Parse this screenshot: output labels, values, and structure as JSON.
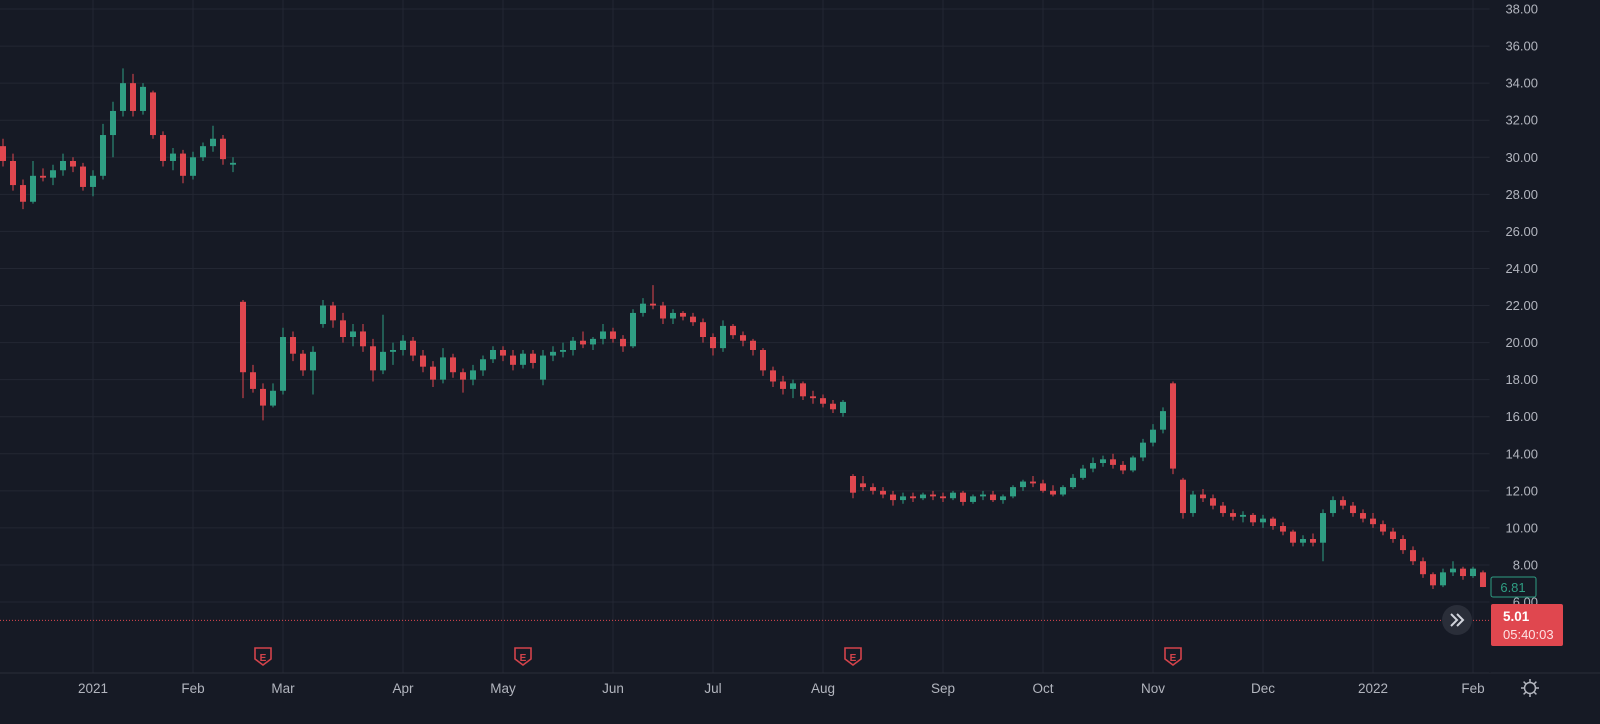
{
  "colors": {
    "background": "#161a25",
    "grid": "#232733",
    "up": "#2f9e83",
    "down": "#e0474f",
    "text": "#b2b5be",
    "earnings": "#d2434b"
  },
  "chart_data": {
    "type": "candlestick",
    "title": "",
    "xlabel": "",
    "ylabel": "",
    "ylim": [
      5,
      38.5
    ],
    "grid": true,
    "y_ticks": [
      "38.00",
      "36.00",
      "34.00",
      "32.00",
      "30.00",
      "28.00",
      "26.00",
      "24.00",
      "22.00",
      "20.00",
      "18.00",
      "16.00",
      "14.00",
      "12.00",
      "10.00",
      "8.00",
      "6.00"
    ],
    "x_ticks": [
      {
        "label": "2021",
        "index": 9
      },
      {
        "label": "Feb",
        "index": 19
      },
      {
        "label": "Mar",
        "index": 28
      },
      {
        "label": "Apr",
        "index": 40
      },
      {
        "label": "May",
        "index": 50
      },
      {
        "label": "Jun",
        "index": 61
      },
      {
        "label": "Jul",
        "index": 71
      },
      {
        "label": "Aug",
        "index": 82
      },
      {
        "label": "Sep",
        "index": 94
      },
      {
        "label": "Oct",
        "index": 104
      },
      {
        "label": "Nov",
        "index": 115
      },
      {
        "label": "Dec",
        "index": 126
      },
      {
        "label": "2022",
        "index": 137
      },
      {
        "label": "Feb",
        "index": 147
      }
    ],
    "earnings_markers": [
      {
        "label": "E",
        "index": 26
      },
      {
        "label": "E",
        "index": 52
      },
      {
        "label": "E",
        "index": 85
      },
      {
        "label": "E",
        "index": 117
      }
    ],
    "last_price": {
      "label": "6.81",
      "value": 6.81
    },
    "price_line": {
      "label": "5.01",
      "value": 5.01,
      "countdown": "05:40:03"
    },
    "ohlc": [
      [
        30.6,
        31,
        29.5,
        29.8
      ],
      [
        29.8,
        30.2,
        28.2,
        28.5
      ],
      [
        28.5,
        28.8,
        27.2,
        27.6
      ],
      [
        27.6,
        29.8,
        27.5,
        29.0
      ],
      [
        29.0,
        29.4,
        28.7,
        28.9
      ],
      [
        28.9,
        29.6,
        28.5,
        29.3
      ],
      [
        29.3,
        30.2,
        29.0,
        29.8
      ],
      [
        29.8,
        30.0,
        29.2,
        29.5
      ],
      [
        29.5,
        29.7,
        28.2,
        28.4
      ],
      [
        28.4,
        29.3,
        27.9,
        29.0
      ],
      [
        29.0,
        31.8,
        28.8,
        31.2
      ],
      [
        31.2,
        33.0,
        30.0,
        32.5
      ],
      [
        32.5,
        34.8,
        32.2,
        34.0
      ],
      [
        34.0,
        34.5,
        32.2,
        32.5
      ],
      [
        32.5,
        34.0,
        32.3,
        33.8
      ],
      [
        33.5,
        33.6,
        31.0,
        31.2
      ],
      [
        31.2,
        31.4,
        29.5,
        29.8
      ],
      [
        29.8,
        30.5,
        29.3,
        30.2
      ],
      [
        30.2,
        30.4,
        28.6,
        29.0
      ],
      [
        29.0,
        30.3,
        28.8,
        30.0
      ],
      [
        30.0,
        30.8,
        29.8,
        30.6
      ],
      [
        30.6,
        31.7,
        30.3,
        31.0
      ],
      [
        31.0,
        31.2,
        29.6,
        29.9
      ],
      [
        29.6,
        30.0,
        29.2,
        29.7
      ],
      [
        22.2,
        22.3,
        17.0,
        18.4
      ],
      [
        18.4,
        18.8,
        17.3,
        17.5
      ],
      [
        17.5,
        17.8,
        15.8,
        16.6
      ],
      [
        16.6,
        17.8,
        16.5,
        17.4
      ],
      [
        17.4,
        20.8,
        17.2,
        20.3
      ],
      [
        20.3,
        20.6,
        19.0,
        19.4
      ],
      [
        19.4,
        19.6,
        18.2,
        18.5
      ],
      [
        18.5,
        19.8,
        17.2,
        19.5
      ],
      [
        21.0,
        22.3,
        20.8,
        22.0
      ],
      [
        22.0,
        22.2,
        20.8,
        21.2
      ],
      [
        21.2,
        21.6,
        20.0,
        20.3
      ],
      [
        20.3,
        21.0,
        19.8,
        20.6
      ],
      [
        20.6,
        21.0,
        19.5,
        19.8
      ],
      [
        19.8,
        20.2,
        17.9,
        18.5
      ],
      [
        18.5,
        21.5,
        18.3,
        19.5
      ],
      [
        19.5,
        20.0,
        18.8,
        19.6
      ],
      [
        19.6,
        20.4,
        19.3,
        20.1
      ],
      [
        20.1,
        20.3,
        19.0,
        19.3
      ],
      [
        19.3,
        19.6,
        18.4,
        18.7
      ],
      [
        18.7,
        19.0,
        17.6,
        18.0
      ],
      [
        18.0,
        19.7,
        17.8,
        19.2
      ],
      [
        19.2,
        19.4,
        18.1,
        18.4
      ],
      [
        18.4,
        18.6,
        17.3,
        18.0
      ],
      [
        18.0,
        18.8,
        17.7,
        18.5
      ],
      [
        18.5,
        19.3,
        18.2,
        19.1
      ],
      [
        19.1,
        19.8,
        18.9,
        19.6
      ],
      [
        19.6,
        19.8,
        19.0,
        19.3
      ],
      [
        19.3,
        19.6,
        18.5,
        18.8
      ],
      [
        18.8,
        19.6,
        18.6,
        19.4
      ],
      [
        19.4,
        19.6,
        18.6,
        18.9
      ],
      [
        18.0,
        19.6,
        17.7,
        19.3
      ],
      [
        19.3,
        19.8,
        19.0,
        19.5
      ],
      [
        19.5,
        20.0,
        19.2,
        19.6
      ],
      [
        19.6,
        20.3,
        19.3,
        20.1
      ],
      [
        20.1,
        20.6,
        19.7,
        19.9
      ],
      [
        19.9,
        20.3,
        19.6,
        20.2
      ],
      [
        20.2,
        21.0,
        19.9,
        20.6
      ],
      [
        20.6,
        20.8,
        20.0,
        20.2
      ],
      [
        20.2,
        20.4,
        19.5,
        19.8
      ],
      [
        19.8,
        21.8,
        19.7,
        21.6
      ],
      [
        21.6,
        22.4,
        21.4,
        22.1
      ],
      [
        22.1,
        23.1,
        21.8,
        22.0
      ],
      [
        22.0,
        22.2,
        21.0,
        21.3
      ],
      [
        21.3,
        21.8,
        21.0,
        21.6
      ],
      [
        21.6,
        21.7,
        21.2,
        21.4
      ],
      [
        21.4,
        21.6,
        20.9,
        21.1
      ],
      [
        21.1,
        21.3,
        20.0,
        20.3
      ],
      [
        20.3,
        20.5,
        19.3,
        19.7
      ],
      [
        19.7,
        21.2,
        19.5,
        20.9
      ],
      [
        20.9,
        21.0,
        20.2,
        20.4
      ],
      [
        20.4,
        20.6,
        19.8,
        20.1
      ],
      [
        20.1,
        20.2,
        19.3,
        19.6
      ],
      [
        19.6,
        19.7,
        18.2,
        18.5
      ],
      [
        18.5,
        18.7,
        17.6,
        17.9
      ],
      [
        17.9,
        18.2,
        17.2,
        17.5
      ],
      [
        17.5,
        18.0,
        17.0,
        17.8
      ],
      [
        17.8,
        17.9,
        16.9,
        17.1
      ],
      [
        17.1,
        17.4,
        16.7,
        17.0
      ],
      [
        17.0,
        17.2,
        16.5,
        16.7
      ],
      [
        16.7,
        16.9,
        16.2,
        16.4
      ],
      [
        16.2,
        16.9,
        16.0,
        16.8
      ],
      [
        12.8,
        12.9,
        11.6,
        11.9
      ],
      [
        12.4,
        12.8,
        12.0,
        12.2
      ],
      [
        12.2,
        12.4,
        11.8,
        12.0
      ],
      [
        12.0,
        12.2,
        11.6,
        11.8
      ],
      [
        11.8,
        12.0,
        11.2,
        11.5
      ],
      [
        11.5,
        11.9,
        11.3,
        11.7
      ],
      [
        11.7,
        11.9,
        11.4,
        11.6
      ],
      [
        11.6,
        11.9,
        11.5,
        11.8
      ],
      [
        11.8,
        12.0,
        11.5,
        11.7
      ],
      [
        11.7,
        11.9,
        11.4,
        11.6
      ],
      [
        11.6,
        12.0,
        11.5,
        11.9
      ],
      [
        11.9,
        12.0,
        11.2,
        11.4
      ],
      [
        11.4,
        11.8,
        11.3,
        11.7
      ],
      [
        11.7,
        12.0,
        11.5,
        11.8
      ],
      [
        11.8,
        12.0,
        11.4,
        11.5
      ],
      [
        11.5,
        11.8,
        11.3,
        11.7
      ],
      [
        11.7,
        12.3,
        11.6,
        12.2
      ],
      [
        12.2,
        12.6,
        12.0,
        12.5
      ],
      [
        12.5,
        12.8,
        12.2,
        12.4
      ],
      [
        12.4,
        12.6,
        11.9,
        12.0
      ],
      [
        12.0,
        12.3,
        11.7,
        11.8
      ],
      [
        11.8,
        12.3,
        11.7,
        12.2
      ],
      [
        12.2,
        12.9,
        12.1,
        12.7
      ],
      [
        12.7,
        13.4,
        12.6,
        13.2
      ],
      [
        13.2,
        13.8,
        13.0,
        13.5
      ],
      [
        13.5,
        13.9,
        13.3,
        13.7
      ],
      [
        13.7,
        14.0,
        13.2,
        13.4
      ],
      [
        13.4,
        13.6,
        12.9,
        13.1
      ],
      [
        13.1,
        13.9,
        13.0,
        13.8
      ],
      [
        13.8,
        14.8,
        13.6,
        14.6
      ],
      [
        14.6,
        15.6,
        14.4,
        15.3
      ],
      [
        15.3,
        16.5,
        15.1,
        16.3
      ],
      [
        17.8,
        17.9,
        12.9,
        13.2
      ],
      [
        12.6,
        12.7,
        10.5,
        10.8
      ],
      [
        10.8,
        12.0,
        10.6,
        11.8
      ],
      [
        11.8,
        12.1,
        11.4,
        11.6
      ],
      [
        11.6,
        11.8,
        11.0,
        11.2
      ],
      [
        11.2,
        11.4,
        10.6,
        10.8
      ],
      [
        10.8,
        11.0,
        10.4,
        10.6
      ],
      [
        10.6,
        10.9,
        10.3,
        10.7
      ],
      [
        10.7,
        10.8,
        10.1,
        10.3
      ],
      [
        10.3,
        10.7,
        10.0,
        10.5
      ],
      [
        10.5,
        10.6,
        9.9,
        10.1
      ],
      [
        10.1,
        10.3,
        9.6,
        9.8
      ],
      [
        9.8,
        9.9,
        9.0,
        9.2
      ],
      [
        9.2,
        9.6,
        9.0,
        9.4
      ],
      [
        9.4,
        9.7,
        9.0,
        9.2
      ],
      [
        9.2,
        11.0,
        8.2,
        10.8
      ],
      [
        10.8,
        11.7,
        10.6,
        11.5
      ],
      [
        11.5,
        11.7,
        11.0,
        11.2
      ],
      [
        11.2,
        11.4,
        10.6,
        10.8
      ],
      [
        10.8,
        11.0,
        10.3,
        10.5
      ],
      [
        10.5,
        10.8,
        10.0,
        10.2
      ],
      [
        10.2,
        10.4,
        9.6,
        9.8
      ],
      [
        9.8,
        10.0,
        9.2,
        9.4
      ],
      [
        9.4,
        9.6,
        8.6,
        8.8
      ],
      [
        8.8,
        9.0,
        8.0,
        8.2
      ],
      [
        8.2,
        8.4,
        7.3,
        7.5
      ],
      [
        7.5,
        7.6,
        6.7,
        6.9
      ],
      [
        6.9,
        7.8,
        6.8,
        7.6
      ],
      [
        7.6,
        8.2,
        7.4,
        7.8
      ],
      [
        7.8,
        7.9,
        7.2,
        7.4
      ],
      [
        7.4,
        7.9,
        7.3,
        7.8
      ],
      [
        7.6,
        7.7,
        6.8,
        6.81
      ]
    ]
  },
  "controls": {
    "scroll_to_realtime": "scroll-to-realtime",
    "settings": "gear-icon"
  }
}
